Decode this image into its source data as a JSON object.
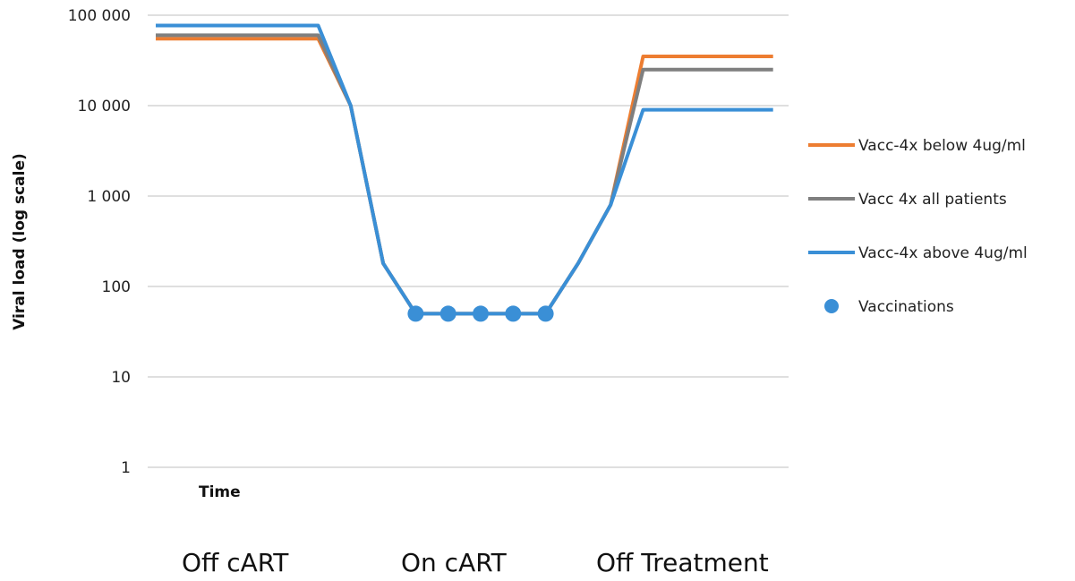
{
  "chart_data": {
    "type": "line",
    "title": "",
    "xlabel": "Time",
    "ylabel": "Viral load (log scale)",
    "yscale": "log",
    "ylim": [
      1,
      100000
    ],
    "yticks": [
      1,
      10,
      100,
      1000,
      10000,
      100000
    ],
    "ytick_labels": [
      "1",
      "10",
      "100",
      "1 000",
      "10 000",
      "100 000"
    ],
    "grid": true,
    "legend_position": "right",
    "series": [
      {
        "name": "Vacc-4x below 4ug/ml",
        "color": "#ED7D31",
        "points": [
          [
            0,
            55000
          ],
          [
            5,
            55000
          ],
          [
            6,
            10000
          ],
          [
            7,
            180
          ],
          [
            8,
            50
          ],
          [
            9,
            50
          ],
          [
            10,
            50
          ],
          [
            11,
            50
          ],
          [
            12,
            50
          ],
          [
            13,
            180
          ],
          [
            14,
            800
          ],
          [
            15,
            35000
          ],
          [
            19,
            35000
          ]
        ]
      },
      {
        "name": "Vacc 4x all patients",
        "color": "#7F7F7F",
        "points": [
          [
            0,
            60000
          ],
          [
            5,
            60000
          ],
          [
            6,
            10000
          ],
          [
            7,
            180
          ],
          [
            8,
            50
          ],
          [
            9,
            50
          ],
          [
            10,
            50
          ],
          [
            11,
            50
          ],
          [
            12,
            50
          ],
          [
            13,
            180
          ],
          [
            14,
            800
          ],
          [
            15,
            25000
          ],
          [
            19,
            25000
          ]
        ]
      },
      {
        "name": "Vacc-4x above 4ug/ml",
        "color": "#3A8FD6",
        "points": [
          [
            0,
            77000
          ],
          [
            5,
            77000
          ],
          [
            6,
            10000
          ],
          [
            7,
            180
          ],
          [
            8,
            50
          ],
          [
            9,
            50
          ],
          [
            10,
            50
          ],
          [
            11,
            50
          ],
          [
            12,
            50
          ],
          [
            13,
            180
          ],
          [
            14,
            800
          ],
          [
            15,
            9000
          ],
          [
            19,
            9000
          ]
        ]
      }
    ],
    "markers": {
      "name": "Vaccinations",
      "color": "#3A8FD6",
      "points": [
        [
          8,
          50
        ],
        [
          9,
          50
        ],
        [
          10,
          50
        ],
        [
          11,
          50
        ],
        [
          12,
          50
        ]
      ]
    },
    "phase_labels": [
      "Off cART",
      "On cART",
      "Off Treatment"
    ]
  }
}
